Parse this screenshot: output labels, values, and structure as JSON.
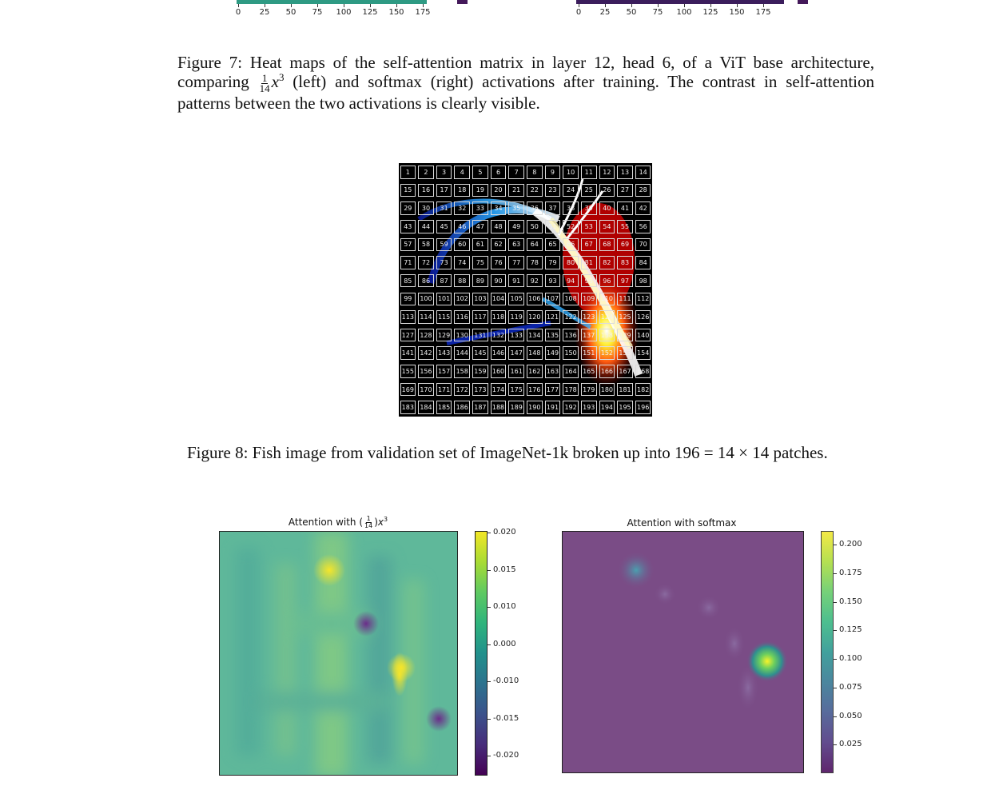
{
  "top_axes": {
    "left_ticks": [
      "0",
      "25",
      "50",
      "75",
      "100",
      "125",
      "150",
      "175"
    ],
    "right_ticks": [
      "0",
      "25",
      "50",
      "75",
      "100",
      "125",
      "150",
      "175"
    ],
    "left_strip_color": "#2e9a83",
    "right_strip_color": "#3b1d5c",
    "colorbar_color": "#44195a"
  },
  "figure7": {
    "line1": "Figure 7: Heat maps of the self-attention matrix in layer 12, head 6, of a ViT base architecture,",
    "line2_pre": "comparing",
    "frac_num": "1",
    "frac_den": "14",
    "var": "x",
    "exp": "3",
    "line2_post": "(left) and softmax (right) activations after training. The contrast in self-attention",
    "line3": "patterns between the two activations is clearly visible."
  },
  "figure8": {
    "caption": "Figure 8: Fish image from validation set of ImageNet-1k broken up into 196 = 14 × 14 patches.",
    "grid_size": 14,
    "patch_count": 196
  },
  "figure9": {
    "left": {
      "title_pre": "Attention with (",
      "frac_num": "1",
      "frac_den": "14",
      "title_post": ")",
      "var": "x",
      "exp": "3",
      "colorbar_ticks": [
        "0.020",
        "0.015",
        "0.010",
        "0.000",
        "-0.010",
        "-0.015",
        "-0.020"
      ],
      "base_color": "#5fb89a"
    },
    "right": {
      "title": "Attention with softmax",
      "colorbar_ticks": [
        "0.200",
        "0.175",
        "0.150",
        "0.125",
        "0.100",
        "0.075",
        "0.050",
        "0.025"
      ],
      "base_color": "#7a4c86"
    }
  }
}
